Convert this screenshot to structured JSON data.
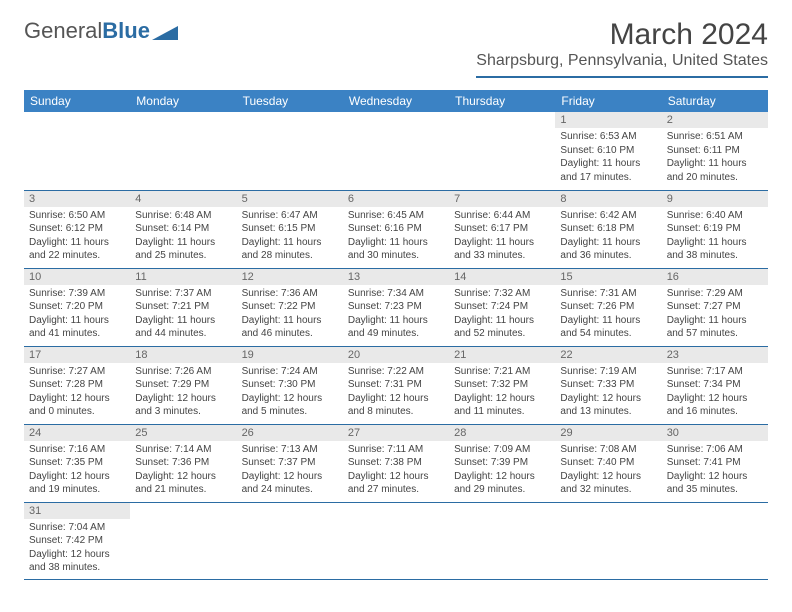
{
  "logo": {
    "text1": "General",
    "text2": "Blue",
    "icon_color": "#2b6ca3"
  },
  "title": "March 2024",
  "location": "Sharpsburg, Pennsylvania, United States",
  "header_bg": "#3b82c4",
  "daynum_bg": "#e9e9e9",
  "border_color": "#2b6ca3",
  "day_headers": [
    "Sunday",
    "Monday",
    "Tuesday",
    "Wednesday",
    "Thursday",
    "Friday",
    "Saturday"
  ],
  "weeks": [
    [
      null,
      null,
      null,
      null,
      null,
      {
        "n": "1",
        "sr": "6:53 AM",
        "ss": "6:10 PM",
        "dh": "11",
        "dm": "17"
      },
      {
        "n": "2",
        "sr": "6:51 AM",
        "ss": "6:11 PM",
        "dh": "11",
        "dm": "20"
      }
    ],
    [
      {
        "n": "3",
        "sr": "6:50 AM",
        "ss": "6:12 PM",
        "dh": "11",
        "dm": "22"
      },
      {
        "n": "4",
        "sr": "6:48 AM",
        "ss": "6:14 PM",
        "dh": "11",
        "dm": "25"
      },
      {
        "n": "5",
        "sr": "6:47 AM",
        "ss": "6:15 PM",
        "dh": "11",
        "dm": "28"
      },
      {
        "n": "6",
        "sr": "6:45 AM",
        "ss": "6:16 PM",
        "dh": "11",
        "dm": "30"
      },
      {
        "n": "7",
        "sr": "6:44 AM",
        "ss": "6:17 PM",
        "dh": "11",
        "dm": "33"
      },
      {
        "n": "8",
        "sr": "6:42 AM",
        "ss": "6:18 PM",
        "dh": "11",
        "dm": "36"
      },
      {
        "n": "9",
        "sr": "6:40 AM",
        "ss": "6:19 PM",
        "dh": "11",
        "dm": "38"
      }
    ],
    [
      {
        "n": "10",
        "sr": "7:39 AM",
        "ss": "7:20 PM",
        "dh": "11",
        "dm": "41"
      },
      {
        "n": "11",
        "sr": "7:37 AM",
        "ss": "7:21 PM",
        "dh": "11",
        "dm": "44"
      },
      {
        "n": "12",
        "sr": "7:36 AM",
        "ss": "7:22 PM",
        "dh": "11",
        "dm": "46"
      },
      {
        "n": "13",
        "sr": "7:34 AM",
        "ss": "7:23 PM",
        "dh": "11",
        "dm": "49"
      },
      {
        "n": "14",
        "sr": "7:32 AM",
        "ss": "7:24 PM",
        "dh": "11",
        "dm": "52"
      },
      {
        "n": "15",
        "sr": "7:31 AM",
        "ss": "7:26 PM",
        "dh": "11",
        "dm": "54"
      },
      {
        "n": "16",
        "sr": "7:29 AM",
        "ss": "7:27 PM",
        "dh": "11",
        "dm": "57"
      }
    ],
    [
      {
        "n": "17",
        "sr": "7:27 AM",
        "ss": "7:28 PM",
        "dh": "12",
        "dm": "0"
      },
      {
        "n": "18",
        "sr": "7:26 AM",
        "ss": "7:29 PM",
        "dh": "12",
        "dm": "3"
      },
      {
        "n": "19",
        "sr": "7:24 AM",
        "ss": "7:30 PM",
        "dh": "12",
        "dm": "5"
      },
      {
        "n": "20",
        "sr": "7:22 AM",
        "ss": "7:31 PM",
        "dh": "12",
        "dm": "8"
      },
      {
        "n": "21",
        "sr": "7:21 AM",
        "ss": "7:32 PM",
        "dh": "12",
        "dm": "11"
      },
      {
        "n": "22",
        "sr": "7:19 AM",
        "ss": "7:33 PM",
        "dh": "12",
        "dm": "13"
      },
      {
        "n": "23",
        "sr": "7:17 AM",
        "ss": "7:34 PM",
        "dh": "12",
        "dm": "16"
      }
    ],
    [
      {
        "n": "24",
        "sr": "7:16 AM",
        "ss": "7:35 PM",
        "dh": "12",
        "dm": "19"
      },
      {
        "n": "25",
        "sr": "7:14 AM",
        "ss": "7:36 PM",
        "dh": "12",
        "dm": "21"
      },
      {
        "n": "26",
        "sr": "7:13 AM",
        "ss": "7:37 PM",
        "dh": "12",
        "dm": "24"
      },
      {
        "n": "27",
        "sr": "7:11 AM",
        "ss": "7:38 PM",
        "dh": "12",
        "dm": "27"
      },
      {
        "n": "28",
        "sr": "7:09 AM",
        "ss": "7:39 PM",
        "dh": "12",
        "dm": "29"
      },
      {
        "n": "29",
        "sr": "7:08 AM",
        "ss": "7:40 PM",
        "dh": "12",
        "dm": "32"
      },
      {
        "n": "30",
        "sr": "7:06 AM",
        "ss": "7:41 PM",
        "dh": "12",
        "dm": "35"
      }
    ],
    [
      {
        "n": "31",
        "sr": "7:04 AM",
        "ss": "7:42 PM",
        "dh": "12",
        "dm": "38"
      },
      null,
      null,
      null,
      null,
      null,
      null
    ]
  ]
}
